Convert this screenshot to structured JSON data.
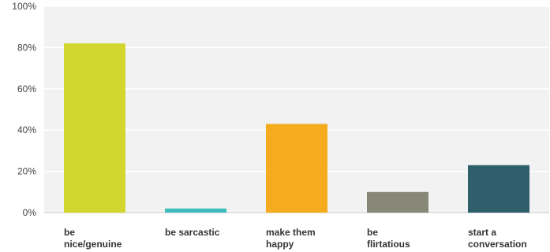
{
  "chart_data": {
    "type": "bar",
    "categories": [
      [
        "be",
        "nice/genuine"
      ],
      [
        "be sarcastic"
      ],
      [
        "make them",
        "happy"
      ],
      [
        "be",
        "flirtatious"
      ],
      [
        "start a",
        "conversation"
      ]
    ],
    "values": [
      82,
      2,
      43,
      10,
      23
    ],
    "colors": [
      "#d2d62e",
      "#3fbcbc",
      "#f5ab1e",
      "#888878",
      "#2f5f6b"
    ],
    "ylim": [
      0,
      100
    ],
    "yticks": [
      0,
      20,
      40,
      60,
      80,
      100
    ],
    "ytick_labels": [
      "0%",
      "20%",
      "40%",
      "60%",
      "80%",
      "100%"
    ],
    "grid": true,
    "plot_background": "#f2f2f2",
    "title": "",
    "xlabel": "",
    "ylabel": ""
  }
}
